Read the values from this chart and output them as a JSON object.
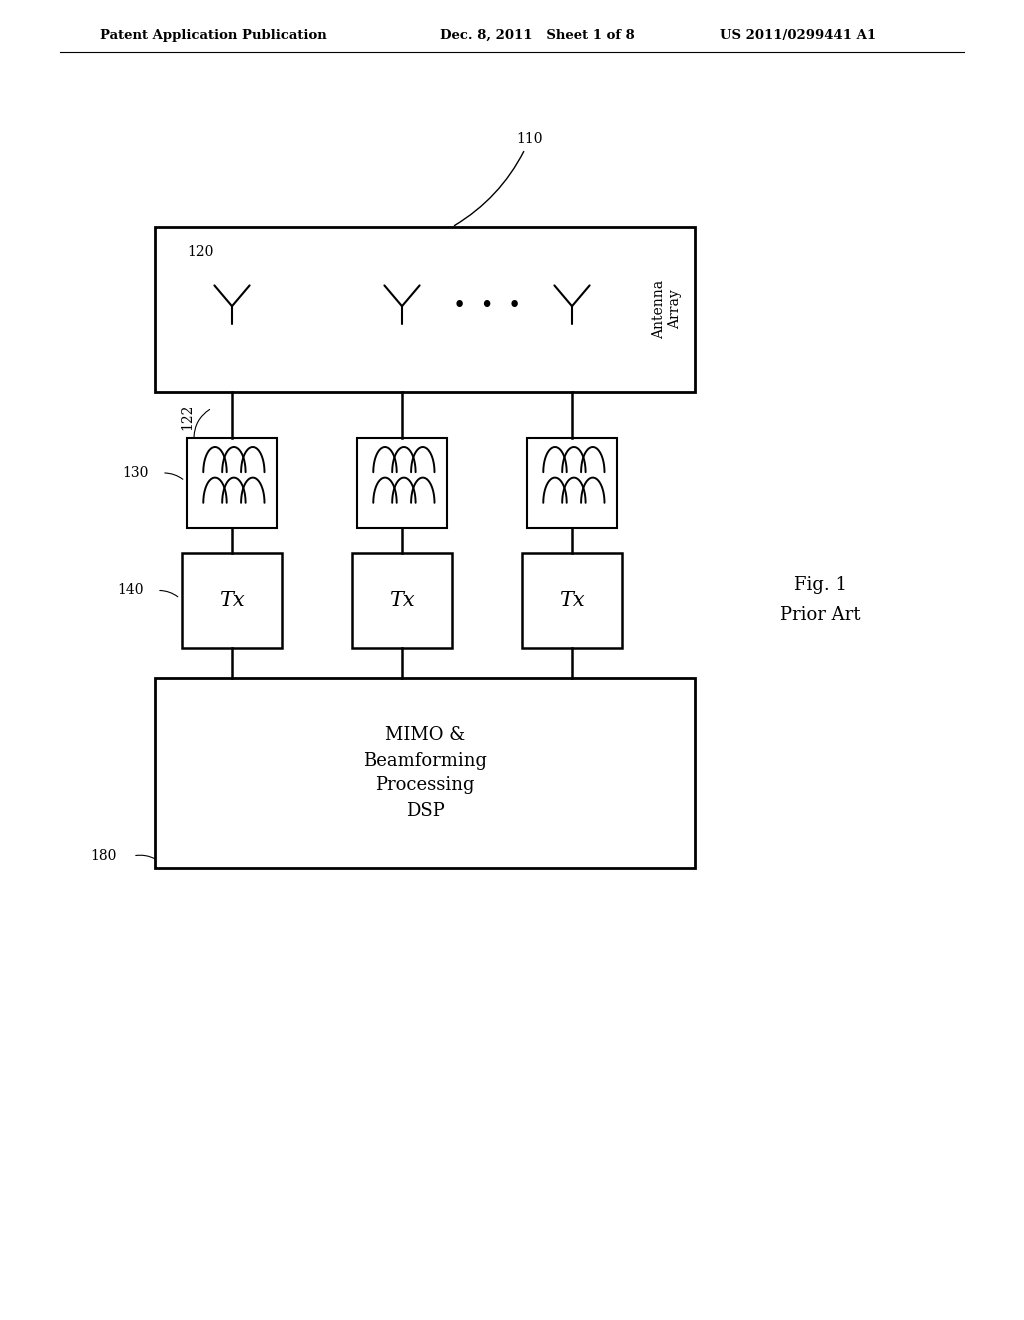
{
  "bg_color": "#ffffff",
  "line_color": "#000000",
  "header_left": "Patent Application Publication",
  "header_mid": "Dec. 8, 2011   Sheet 1 of 8",
  "header_right": "US 2011/0299441 A1",
  "fig_label_line1": "Fig. 1",
  "fig_label_line2": "Prior Art",
  "label_110": "110",
  "label_120": "120",
  "label_122": "122",
  "label_130": "130",
  "label_140": "140",
  "label_180": "180",
  "antenna_array_label_line1": "Antenna",
  "antenna_array_label_line2": "Array",
  "tx_label": "Tx",
  "dsp_line1": "MIMO &",
  "dsp_line2": "Beamforming",
  "dsp_line3": "Processing",
  "dsp_line4": "DSP",
  "dots": "•  •  •"
}
